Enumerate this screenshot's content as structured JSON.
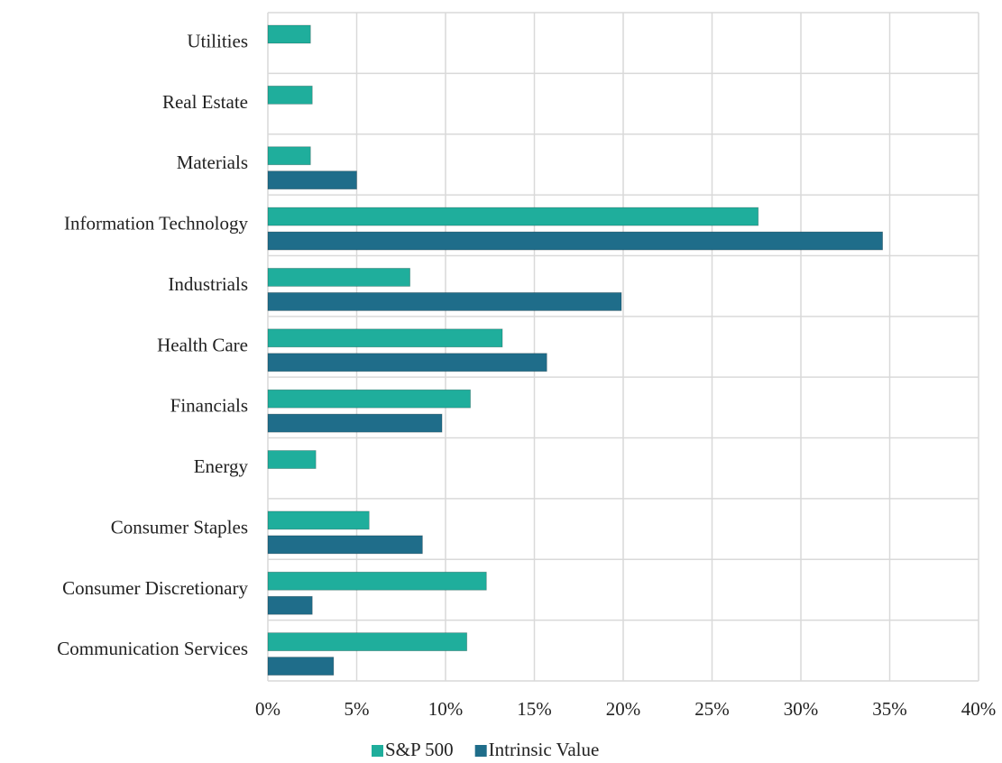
{
  "chart_data": {
    "type": "hbar",
    "categories": [
      "Utilities",
      "Real Estate",
      "Materials",
      "Information Technology",
      "Industrials",
      "Health Care",
      "Financials",
      "Energy",
      "Consumer Staples",
      "Consumer Discretionary",
      "Communication Services"
    ],
    "series": [
      {
        "name": "S&P 500",
        "color": "#1fae9c",
        "values": [
          2.4,
          2.5,
          2.4,
          27.6,
          8.0,
          13.2,
          11.4,
          2.7,
          5.7,
          12.3,
          11.2
        ]
      },
      {
        "name": "Intrinsic Value",
        "color": "#1f6d8a",
        "values": [
          0,
          0,
          5.0,
          34.6,
          19.9,
          15.7,
          9.8,
          0,
          8.7,
          2.5,
          3.7
        ]
      }
    ],
    "xlim": [
      0,
      40
    ],
    "xticks": [
      {
        "value": 0,
        "label": "0%"
      },
      {
        "value": 5,
        "label": "5%"
      },
      {
        "value": 10,
        "label": "10%"
      },
      {
        "value": 15,
        "label": "15%"
      },
      {
        "value": 20,
        "label": "20%"
      },
      {
        "value": 25,
        "label": "25%"
      },
      {
        "value": 30,
        "label": "30%"
      },
      {
        "value": 35,
        "label": "35%"
      },
      {
        "value": 40,
        "label": "40%"
      }
    ],
    "grid": true,
    "legend": "bottom"
  }
}
